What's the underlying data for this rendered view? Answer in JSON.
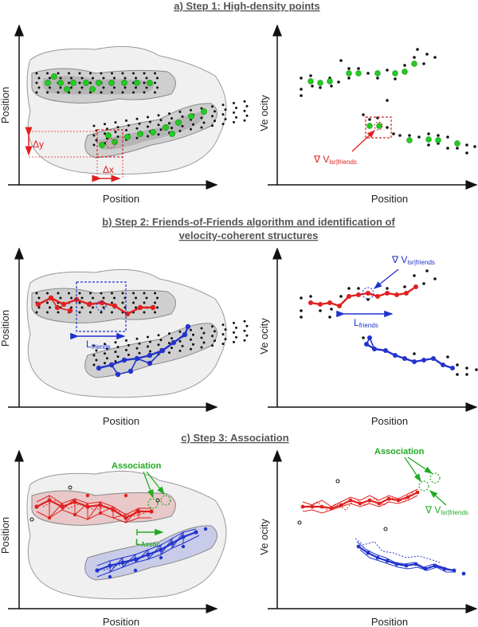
{
  "titles": {
    "a": "a) Step 1: High-density points",
    "b1": "b) Step 2: Friends-of-Friends algorithm and identification of",
    "b2": "velocity-coherent structures",
    "c": "c)  Step 3: Association"
  },
  "axes": {
    "position": "Position",
    "velocity": "Ve ocity"
  },
  "annotations": {
    "delta_y": "Δy",
    "delta_x": "Δx",
    "grad_symbol": "∇ V",
    "grad_sub": "lsr|friends",
    "l_main": "L",
    "l_friends_sub": "friends",
    "l_assoc_sub": "Assoc",
    "association": "Association"
  },
  "colors": {
    "red": "#e02020",
    "blue": "#2233cc",
    "green": "#22cc22",
    "dark_green": "#22aa22",
    "gray_blob": "#d8d8d8"
  }
}
